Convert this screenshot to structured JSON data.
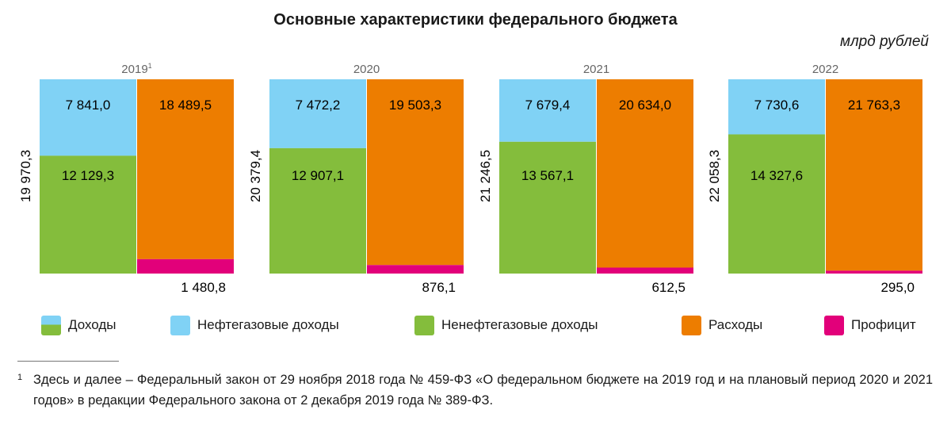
{
  "title": "Основные характеристики федерального бюджета",
  "unit": "млрд рублей",
  "footnote": {
    "mark": "1",
    "text": "Здесь и далее – Федеральный закон от 29 ноября 2018 года № 459-ФЗ «О федеральном бюджете на 2019 год и на плановый период 2020 и 2021 годов» в редакции Федерального закона от 2 декабря 2019 года № 389-ФЗ."
  },
  "colors": {
    "oil_gas": "#80d2f5",
    "non_oil_gas": "#84bd3c",
    "expenditure": "#ed7d00",
    "surplus": "#e2007a",
    "year_label": "#666666"
  },
  "legend": [
    {
      "label": "Доходы",
      "color_key": "revenue"
    },
    {
      "label": "Нефтегазовые доходы",
      "color_key": "oil_gas"
    },
    {
      "label": "Ненефтегазовые доходы",
      "color_key": "non_oil_gas"
    },
    {
      "label": "Расходы",
      "color_key": "expenditure"
    },
    {
      "label": "Профицит",
      "color_key": "surplus"
    }
  ],
  "chart_data": {
    "type": "bar",
    "stacked": true,
    "categories": [
      "2019",
      "2020",
      "2021",
      "2022"
    ],
    "category_footnote_marks": [
      "1",
      "",
      "",
      ""
    ],
    "series": [
      {
        "name": "Нефтегазовые доходы",
        "stack": "Доходы",
        "values": [
          7841.0,
          7472.2,
          7679.4,
          7730.6
        ],
        "labels": [
          "7 841,0",
          "7 472,2",
          "7 679,4",
          "7 730,6"
        ]
      },
      {
        "name": "Ненефтегазовые доходы",
        "stack": "Доходы",
        "values": [
          12129.3,
          12907.1,
          13567.1,
          14327.6
        ],
        "labels": [
          "12 129,3",
          "12 907,1",
          "13 567,1",
          "14 327,6"
        ]
      },
      {
        "name": "Расходы",
        "stack": "Расходы",
        "values": [
          18489.5,
          19503.3,
          20634.0,
          21763.3
        ],
        "labels": [
          "18 489,5",
          "19 503,3",
          "20 634,0",
          "21 763,3"
        ]
      },
      {
        "name": "Профицит",
        "stack": "Расходы",
        "values": [
          1480.8,
          876.1,
          612.5,
          295.0
        ],
        "labels": [
          "1 480,8",
          "876,1",
          "612,5",
          "295,0"
        ]
      }
    ],
    "revenue_totals": [
      19970.3,
      20379.4,
      21246.5,
      22058.3
    ],
    "revenue_total_labels": [
      "19 970,3",
      "20 379,4",
      "21 246,5",
      "22 058,3"
    ],
    "value_units": "млрд рублей"
  }
}
